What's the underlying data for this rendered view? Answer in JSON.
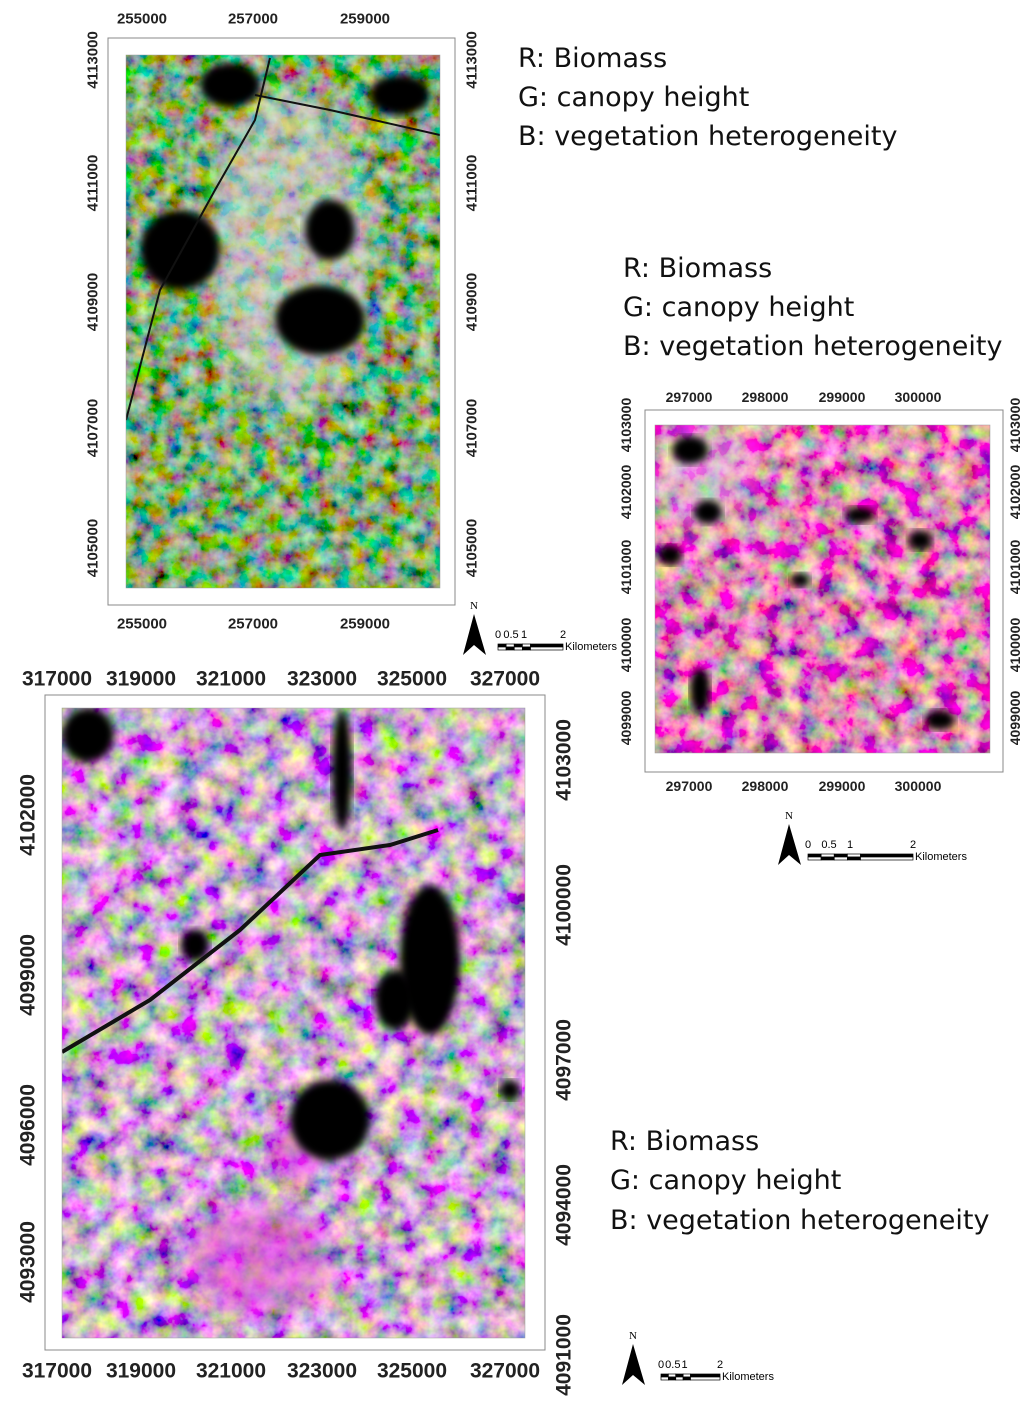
{
  "panels": [
    {
      "legend": [
        "R: Biomass",
        "G: canopy height",
        "B: vegetation heterogeneity"
      ],
      "x_top": [
        "255000",
        "257000",
        "259000"
      ],
      "x_bottom": [
        "255000",
        "257000",
        "259000"
      ],
      "y_left": [
        "4113000",
        "4111000",
        "4109000",
        "4107000",
        "4105000"
      ],
      "y_right": [
        "4113000",
        "4111000",
        "4109000",
        "4107000",
        "4105000"
      ],
      "scale": {
        "north": "N",
        "labels": [
          "0",
          "0.5",
          "1",
          "2"
        ],
        "unit": "Kilometers"
      }
    },
    {
      "legend": [
        "R: Biomass",
        "G: canopy height",
        "B: vegetation heterogeneity"
      ],
      "x_top": [
        "297000",
        "298000",
        "299000",
        "300000"
      ],
      "x_bottom": [
        "297000",
        "298000",
        "299000",
        "300000"
      ],
      "y_left": [
        "4103000",
        "4102000",
        "4101000",
        "4100000",
        "4099000"
      ],
      "y_right": [
        "4103000",
        "4102000",
        "4101000",
        "4100000",
        "4099000"
      ],
      "scale": {
        "north": "N",
        "labels": [
          "0",
          "0.5",
          "1",
          "2"
        ],
        "unit": "Kilometers"
      }
    },
    {
      "legend": [
        "R: Biomass",
        "G: canopy height",
        "B: vegetation heterogeneity"
      ],
      "x_top": [
        "317000",
        "319000",
        "321000",
        "323000",
        "325000",
        "327000"
      ],
      "x_bottom": [
        "317000",
        "319000",
        "321000",
        "323000",
        "325000",
        "327000"
      ],
      "y_left": [
        "4102000",
        "4099000",
        "4096000",
        "4093000"
      ],
      "y_right": [
        "4103000",
        "4100000",
        "4097000",
        "4094000",
        "4091000"
      ],
      "scale": {
        "north": "N",
        "labels": [
          "0",
          "0.5",
          "1",
          "2"
        ],
        "unit": "Kilometers"
      }
    }
  ]
}
